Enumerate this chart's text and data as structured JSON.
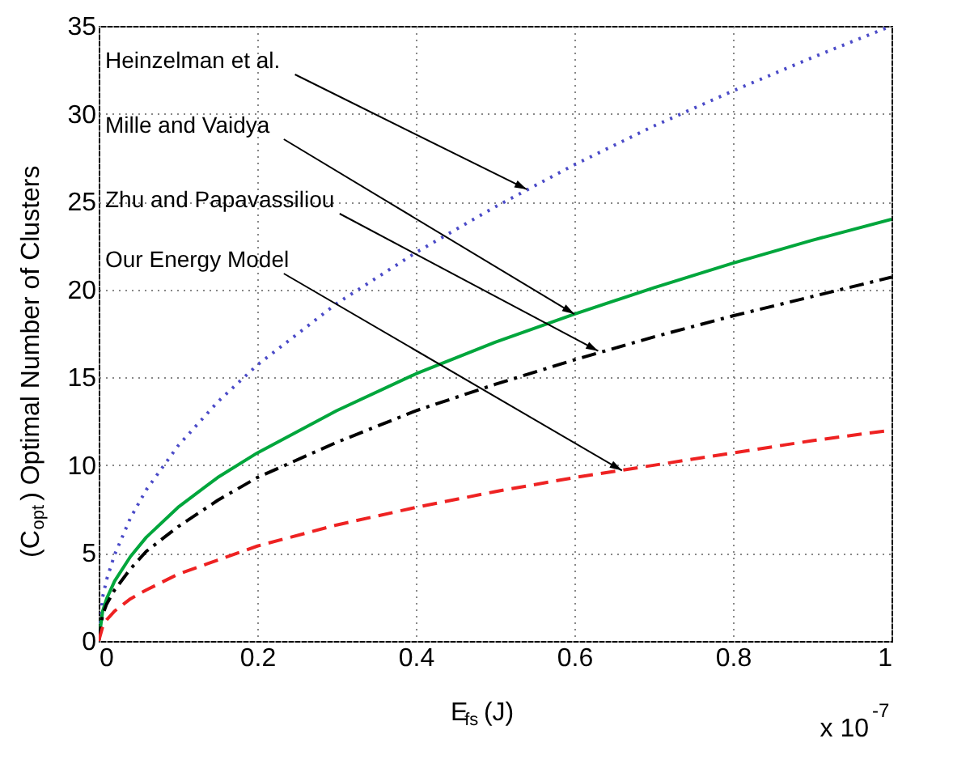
{
  "chart_data": {
    "type": "line",
    "xlabel": "E$_{fs}$ (J)",
    "ylabel": "(C$_{opt}$) Optimal Number of Clusters",
    "x": [
      0,
      0.005,
      0.01,
      0.02,
      0.04,
      0.06,
      0.1,
      0.15,
      0.2,
      0.3,
      0.4,
      0.5,
      0.6,
      0.7,
      0.8,
      0.9,
      1
    ],
    "series": [
      {
        "color": "#4b4bc8",
        "line_style": "dotted",
        "values": [
          0,
          2.5,
          3.5,
          4.9,
          7,
          8.6,
          11.1,
          13.6,
          15.7,
          19.2,
          22.1,
          24.7,
          27.1,
          29.3,
          31.3,
          33.2,
          35
        ]
      },
      {
        "color": "#00a63c",
        "line_style": "solid",
        "values": [
          0,
          1.7,
          2.4,
          3.4,
          4.8,
          5.9,
          7.6,
          9.3,
          10.7,
          13.1,
          15.2,
          17,
          18.6,
          20.1,
          21.5,
          22.8,
          24
        ]
      },
      {
        "color": "#000000",
        "line_style": "dashdot",
        "values": [
          0,
          1.5,
          2.1,
          2.9,
          4.1,
          5.1,
          6.5,
          8,
          9.3,
          11.3,
          13.1,
          14.6,
          16,
          17.3,
          18.5,
          19.6,
          20.7
        ]
      },
      {
        "color": "#ee2222",
        "line_style": "dashed",
        "values": [
          0,
          0.8,
          1.2,
          1.7,
          2.4,
          2.9,
          3.8,
          4.6,
          5.4,
          6.6,
          7.6,
          8.5,
          9.3,
          10,
          10.7,
          11.4,
          12
        ]
      }
    ],
    "annotations": [
      {
        "text": "Heinzelman et al.",
        "x": 0.54,
        "y": 25.7
      },
      {
        "text": "Mille and Vaidya",
        "x": 0.6,
        "y": 18.6
      },
      {
        "text": "Zhu and Papavassiliou",
        "x": 0.63,
        "y": 16.5
      },
      {
        "text": "Our Energy Model",
        "x": 0.66,
        "y": 9.7
      },
      "x 10$^{-7}$"
    ],
    "xlim": [
      0,
      1
    ],
    "ylim": [
      0,
      35
    ],
    "xticks": [
      0,
      0.2,
      0.4,
      0.6,
      0.8,
      1
    ],
    "yticks": [
      0,
      5,
      10,
      15,
      20,
      25,
      30,
      35
    ],
    "grid": true,
    "marker": "none"
  }
}
